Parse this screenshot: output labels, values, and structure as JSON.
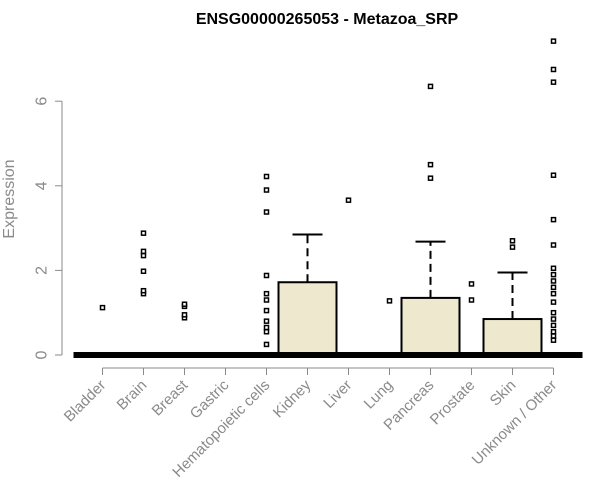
{
  "chart_data": {
    "type": "boxplot",
    "title": "ENSG00000265053 - Metazoa_SRP",
    "xlabel": "",
    "ylabel": "Expression",
    "ylim": [
      0,
      7.5
    ],
    "yticks": [
      0,
      2,
      4,
      6
    ],
    "box_fill": "#ede8ce",
    "grid": false,
    "categories": [
      {
        "name": "Bladder",
        "q1": 0,
        "median": 0,
        "q3": 0,
        "whisker_high": 0,
        "outliers": [
          1.12
        ]
      },
      {
        "name": "Brain",
        "q1": 0,
        "median": 0,
        "q3": 0,
        "whisker_high": 0,
        "outliers": [
          1.45,
          1.52,
          1.98,
          2.35,
          2.45,
          2.88
        ]
      },
      {
        "name": "Breast",
        "q1": 0,
        "median": 0,
        "q3": 0,
        "whisker_high": 0,
        "outliers": [
          0.88,
          0.95,
          1.15,
          1.2
        ]
      },
      {
        "name": "Gastric",
        "q1": 0,
        "median": 0,
        "q3": 0,
        "whisker_high": 0,
        "outliers": []
      },
      {
        "name": "Hematopoietic cells",
        "q1": 0,
        "median": 0,
        "q3": 0,
        "whisker_high": 0,
        "outliers": [
          0.25,
          0.55,
          0.65,
          0.8,
          1.05,
          1.3,
          1.45,
          1.88,
          3.38,
          3.9,
          4.22
        ]
      },
      {
        "name": "Kidney",
        "q1": 0,
        "median": 0,
        "q3": 1.72,
        "whisker_high": 2.85,
        "outliers": []
      },
      {
        "name": "Liver",
        "q1": 0,
        "median": 0,
        "q3": 0,
        "whisker_high": 0,
        "outliers": [
          3.66
        ]
      },
      {
        "name": "Lung",
        "q1": 0,
        "median": 0,
        "q3": 0,
        "whisker_high": 0,
        "outliers": [
          1.28
        ]
      },
      {
        "name": "Pancreas",
        "q1": 0,
        "median": 0,
        "q3": 1.35,
        "whisker_high": 2.68,
        "outliers": [
          4.18,
          4.5,
          6.35
        ]
      },
      {
        "name": "Prostate",
        "q1": 0,
        "median": 0,
        "q3": 0,
        "whisker_high": 0,
        "outliers": [
          1.3,
          1.68
        ]
      },
      {
        "name": "Skin",
        "q1": 0,
        "median": 0,
        "q3": 0.85,
        "whisker_high": 1.95,
        "outliers": [
          2.55,
          2.7
        ]
      },
      {
        "name": "Unknown / Other",
        "q1": 0,
        "median": 0,
        "q3": 0,
        "whisker_high": 0,
        "outliers": [
          0.35,
          0.45,
          0.55,
          0.7,
          0.85,
          1.0,
          1.25,
          1.45,
          1.6,
          1.75,
          1.9,
          2.05,
          2.6,
          3.2,
          4.25,
          6.45,
          6.75,
          7.42
        ]
      }
    ]
  }
}
